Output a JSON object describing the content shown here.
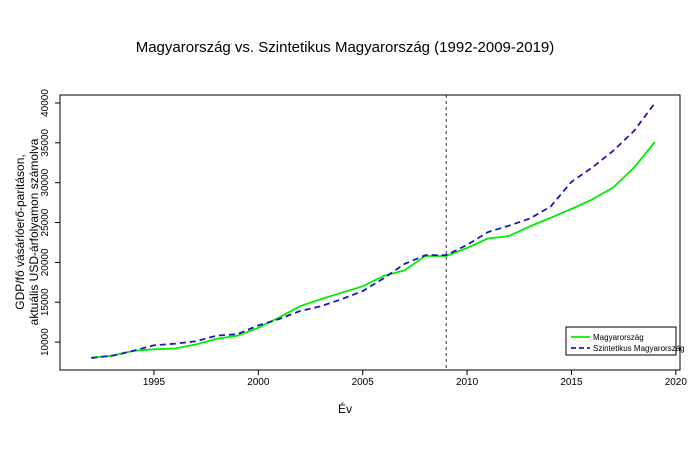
{
  "chart_data": {
    "type": "line",
    "title": "Magyarország vs. Szintetikus Magyarország (1992-2009-2019)",
    "xlabel": "Év",
    "ylabel_line1": "GDP/fő vásárlóerő-paritáson,",
    "ylabel_line2": "aktuális USD-árfolyamon számolva",
    "xlim": [
      1990.5,
      2020.2
    ],
    "ylim": [
      6500,
      41000
    ],
    "x_ticks": [
      1995,
      2000,
      2005,
      2010,
      2015,
      2020
    ],
    "y_ticks": [
      10000,
      15000,
      20000,
      25000,
      30000,
      35000,
      40000
    ],
    "vline_x": 2009,
    "grid": false,
    "legend_position": "bottom-right",
    "x": [
      1992,
      1993,
      1994,
      1995,
      1996,
      1997,
      1998,
      1999,
      2000,
      2001,
      2002,
      2003,
      2004,
      2005,
      2006,
      2007,
      2008,
      2009,
      2010,
      2011,
      2012,
      2013,
      2014,
      2015,
      2016,
      2017,
      2018,
      2019
    ],
    "series": [
      {
        "name": "Magyarország",
        "color": "#00ee00",
        "style": "solid",
        "values": [
          8050,
          8300,
          8900,
          9100,
          9200,
          9700,
          10400,
          10800,
          11800,
          13100,
          14500,
          15400,
          16200,
          17000,
          18300,
          19000,
          20800,
          20800,
          21800,
          23000,
          23300,
          24500,
          25600,
          26700,
          27900,
          29400,
          31900,
          35100
        ]
      },
      {
        "name": "Szintetikus Magyarország",
        "color": "#1a1ab8",
        "style": "dashed",
        "values": [
          8000,
          8300,
          8900,
          9600,
          9800,
          10100,
          10800,
          11000,
          12100,
          12900,
          13900,
          14500,
          15400,
          16400,
          18000,
          19800,
          20900,
          20900,
          22200,
          23800,
          24600,
          25500,
          27000,
          30100,
          31900,
          34000,
          36500,
          40000
        ]
      }
    ]
  }
}
